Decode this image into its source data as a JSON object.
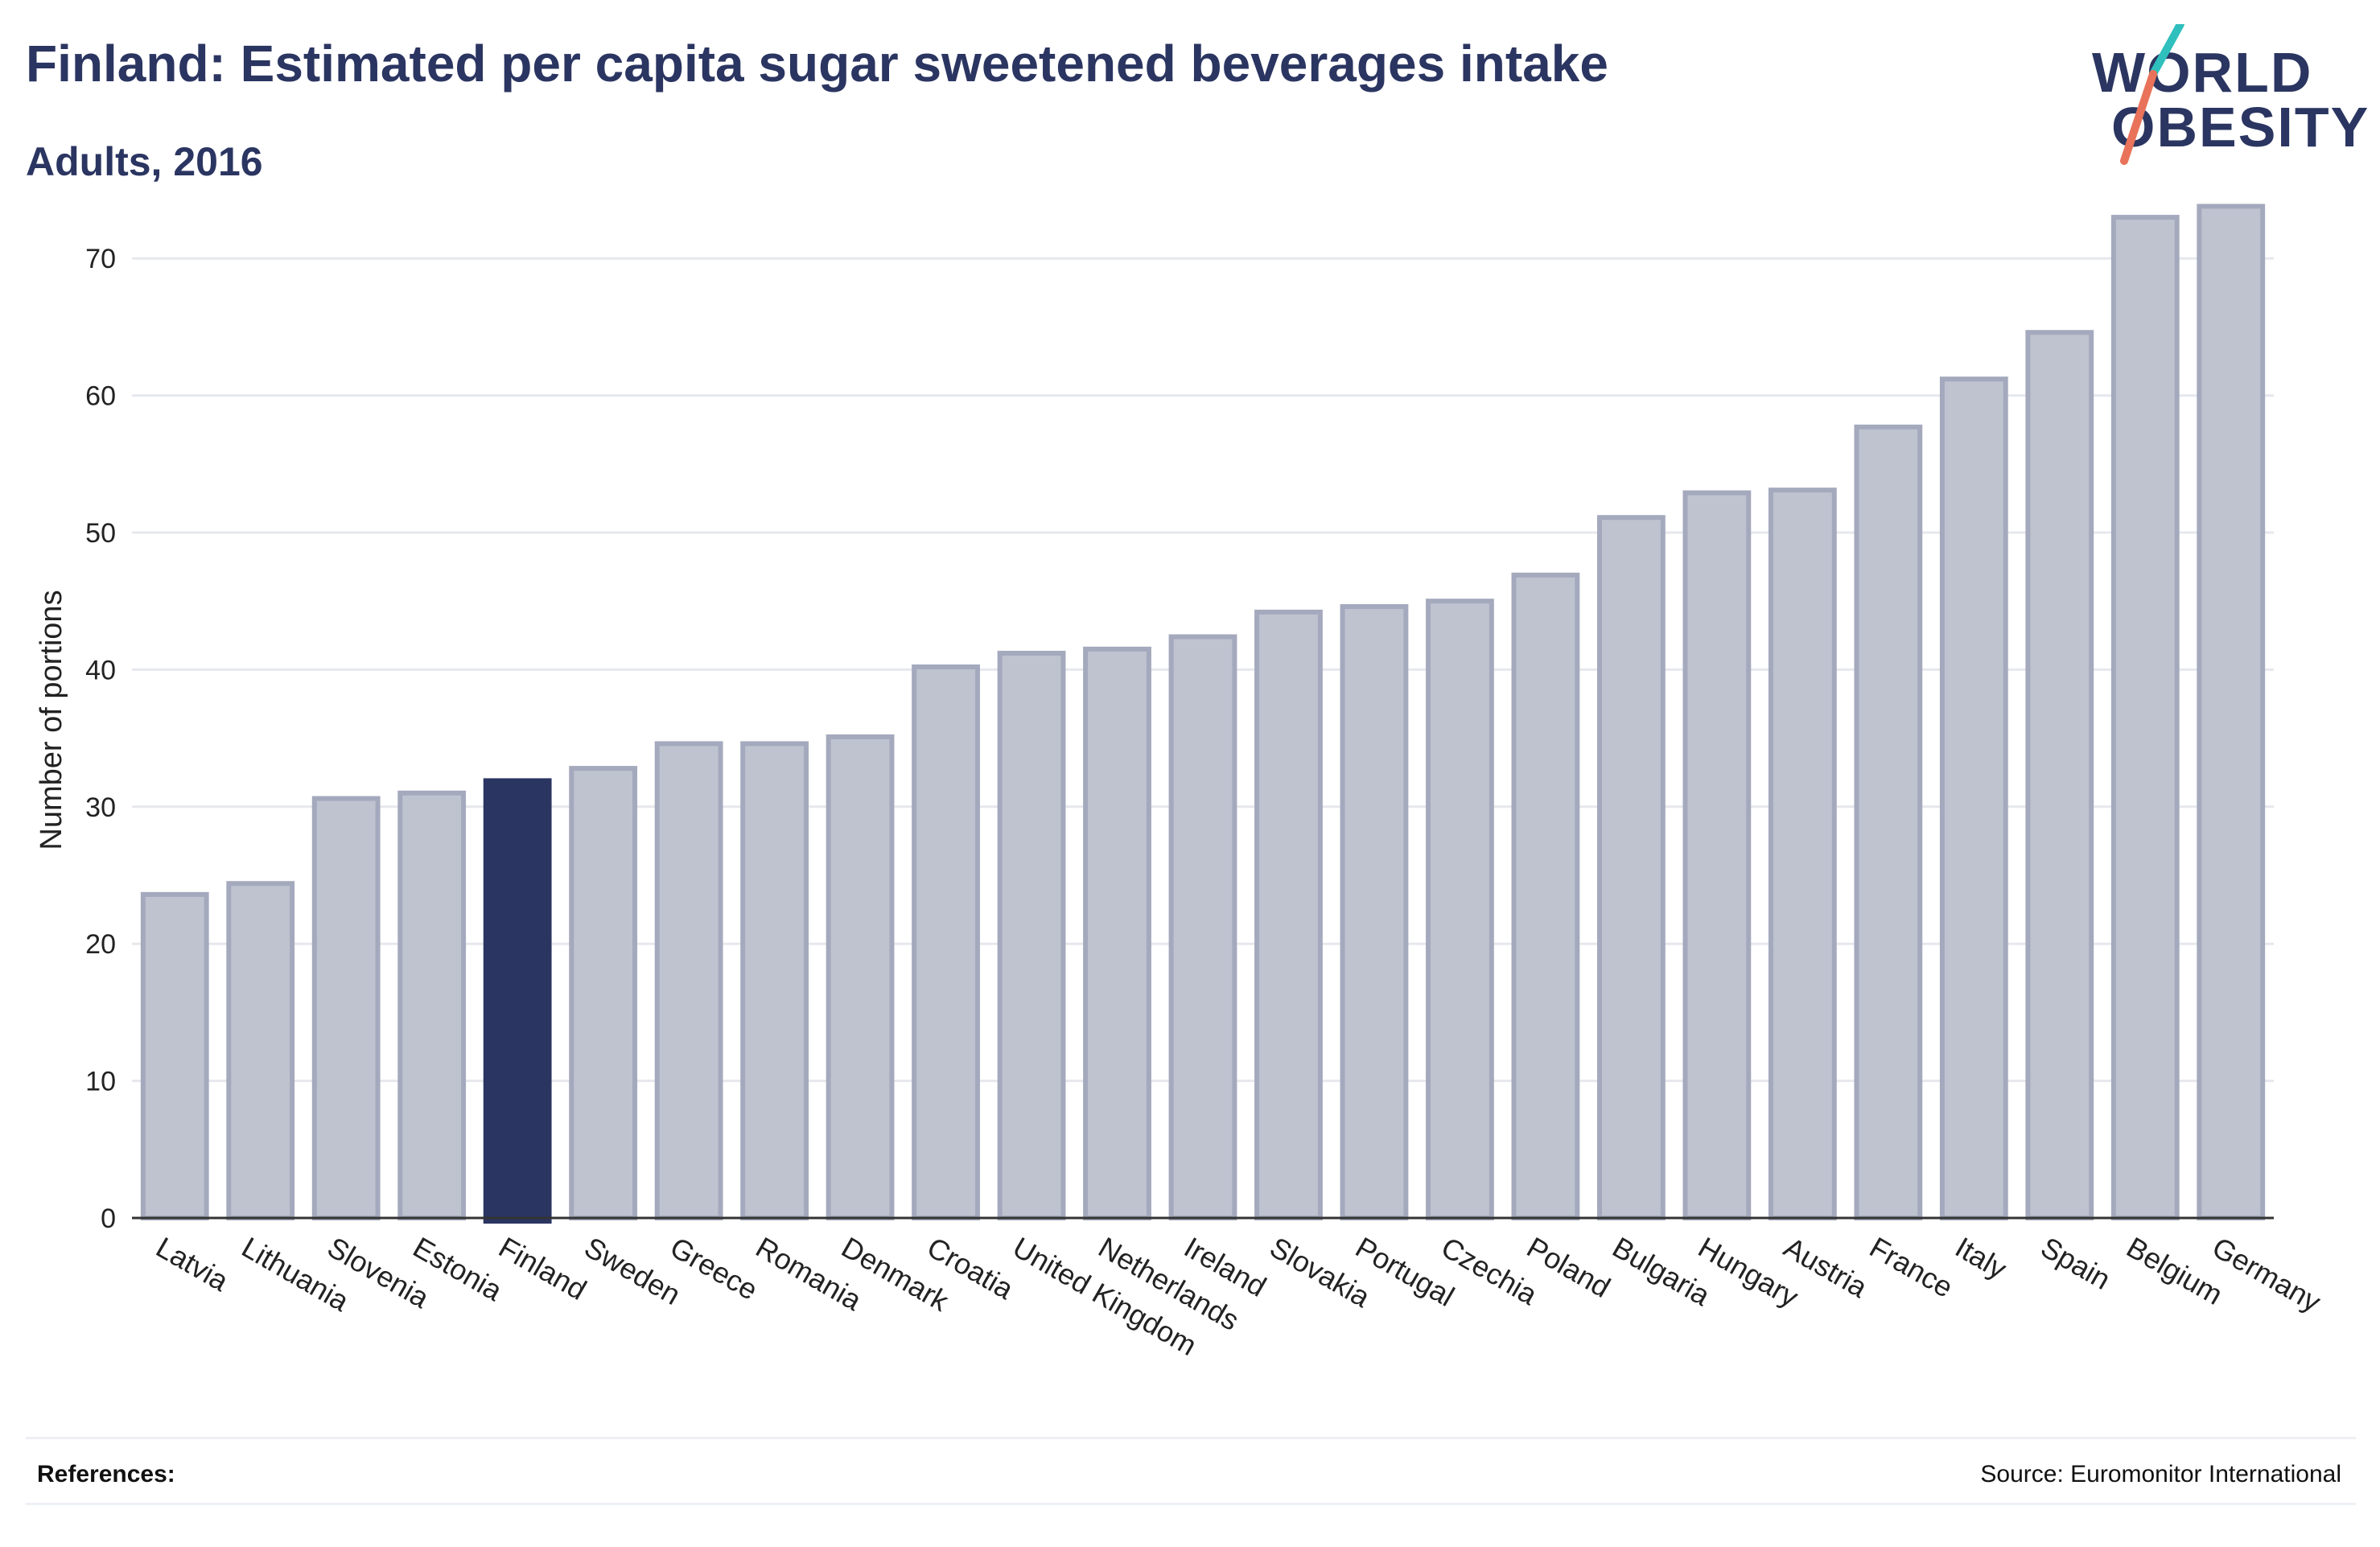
{
  "header": {
    "title": "Finland: Estimated per capita sugar sweetened beverages intake",
    "subtitle": "Adults, 2016"
  },
  "logo": {
    "line1": "WORLD",
    "line2": "OBESITY",
    "accent_colors": [
      "#2fbfbd",
      "#e8735a"
    ]
  },
  "colors": {
    "highlight": "#2b3561",
    "bar_fill": "#bfc3d0",
    "bar_stroke": "#a4a9bd",
    "text": "#2b3561"
  },
  "chart_data": {
    "type": "bar",
    "title": "Finland: Estimated per capita sugar sweetened beverages intake",
    "subtitle": "Adults, 2016",
    "xlabel": "",
    "ylabel": "Number of portions",
    "ylim": [
      0,
      75
    ],
    "yticks": [
      0,
      10,
      20,
      30,
      40,
      50,
      60,
      70
    ],
    "grid": true,
    "highlight": "Finland",
    "categories": [
      "Latvia",
      "Lithuania",
      "Slovenia",
      "Estonia",
      "Finland",
      "Sweden",
      "Greece",
      "Romania",
      "Denmark",
      "Croatia",
      "United Kingdom",
      "Netherlands",
      "Ireland",
      "Slovakia",
      "Portugal",
      "Czechia",
      "Poland",
      "Bulgaria",
      "Hungary",
      "Austria",
      "France",
      "Italy",
      "Spain",
      "Belgium",
      "Germany"
    ],
    "values": [
      23.6,
      24.4,
      30.6,
      31.0,
      31.9,
      32.8,
      34.6,
      34.6,
      35.1,
      40.2,
      41.2,
      41.5,
      42.4,
      44.2,
      44.6,
      45.0,
      46.9,
      51.1,
      52.9,
      53.1,
      57.7,
      61.2,
      64.6,
      73.0,
      73.8
    ]
  },
  "footer": {
    "references_label": "References:",
    "source": "Source: Euromonitor International"
  }
}
